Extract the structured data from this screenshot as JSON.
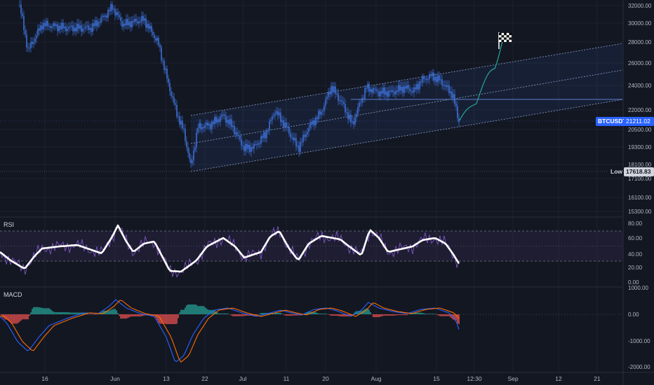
{
  "symbol": "BTCUSDT",
  "last_price": "21211.02",
  "low_label": "Low",
  "low_price": "17618.83",
  "price_axis": [
    "32000.00",
    "30000.00",
    "28000.00",
    "26000.00",
    "24000.00",
    "22000.00",
    "20500.00",
    "19300.00",
    "18100.00",
    "17100.00",
    "16100.00",
    "15300.00"
  ],
  "rsi": {
    "title": "RSI",
    "axis": [
      "80.00",
      "60.00",
      "40.00",
      "20.00",
      "0.00"
    ]
  },
  "macd": {
    "title": "MACD",
    "axis": [
      "1000.00",
      "0.00",
      "-1000.00",
      "-2000.00"
    ]
  },
  "time_axis": [
    "16",
    "Jun",
    "13",
    "22",
    "Jul",
    "11",
    "20",
    "Aug",
    "15",
    "12:30",
    "Sep",
    "12",
    "21"
  ],
  "flag_icon": "checkered-flag-icon",
  "colors": {
    "background": "#131722",
    "candle": "#3d6fd6",
    "channel": "#8aa4cf",
    "projection": "#26a69a",
    "rsi_line": "#ffffff",
    "rsi_raw": "#7e57c2",
    "macd_line": "#2962ff",
    "signal_line": "#ff6d00",
    "hist_up": "#26a69a",
    "hist_down": "#ef5350",
    "price_tag": "#2962ff"
  }
}
